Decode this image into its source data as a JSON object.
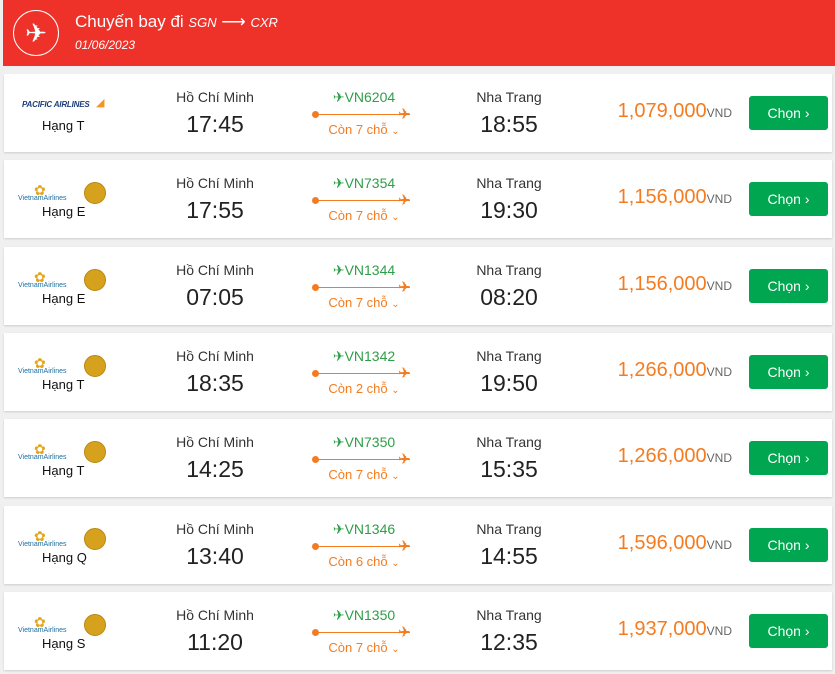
{
  "header": {
    "title": "Chuyến bay đi",
    "from": "SGN",
    "to": "CXR",
    "date": "01/06/2023",
    "icon": "airplane-icon"
  },
  "colors": {
    "header": "#ee3129",
    "price": "#f47c20",
    "button": "#00a650",
    "flight": "#2e9e48"
  },
  "flights": [
    {
      "airline": "PACIFIC AIRLINES",
      "class": "Hạng T",
      "from": "Hồ Chí Minh",
      "dep": "17:45",
      "code": "VN6204",
      "seats": "Còn 7 chỗ",
      "to": "Nha Trang",
      "arr": "18:55",
      "price": "1,079,000",
      "currency": "VND",
      "button": "Chọn"
    },
    {
      "airline": "VietnamAirlines",
      "class": "Hạng E",
      "from": "Hồ Chí Minh",
      "dep": "17:55",
      "code": "VN7354",
      "seats": "Còn 7 chỗ",
      "to": "Nha Trang",
      "arr": "19:30",
      "price": "1,156,000",
      "currency": "VND",
      "button": "Chọn"
    },
    {
      "airline": "VietnamAirlines",
      "class": "Hạng E",
      "from": "Hồ Chí Minh",
      "dep": "07:05",
      "code": "VN1344",
      "seats": "Còn 7 chỗ",
      "to": "Nha Trang",
      "arr": "08:20",
      "price": "1,156,000",
      "currency": "VND",
      "button": "Chọn"
    },
    {
      "airline": "VietnamAirlines",
      "class": "Hạng T",
      "from": "Hồ Chí Minh",
      "dep": "18:35",
      "code": "VN1342",
      "seats": "Còn 2 chỗ",
      "to": "Nha Trang",
      "arr": "19:50",
      "price": "1,266,000",
      "currency": "VND",
      "button": "Chọn"
    },
    {
      "airline": "VietnamAirlines",
      "class": "Hạng T",
      "from": "Hồ Chí Minh",
      "dep": "14:25",
      "code": "VN7350",
      "seats": "Còn 7 chỗ",
      "to": "Nha Trang",
      "arr": "15:35",
      "price": "1,266,000",
      "currency": "VND",
      "button": "Chọn"
    },
    {
      "airline": "VietnamAirlines",
      "class": "Hạng Q",
      "from": "Hồ Chí Minh",
      "dep": "13:40",
      "code": "VN1346",
      "seats": "Còn 6 chỗ",
      "to": "Nha Trang",
      "arr": "14:55",
      "price": "1,596,000",
      "currency": "VND",
      "button": "Chọn"
    },
    {
      "airline": "VietnamAirlines",
      "class": "Hạng S",
      "from": "Hồ Chí Minh",
      "dep": "11:20",
      "code": "VN1350",
      "seats": "Còn 7 chỗ",
      "to": "Nha Trang",
      "arr": "12:35",
      "price": "1,937,000",
      "currency": "VND",
      "button": "Chọn"
    }
  ]
}
